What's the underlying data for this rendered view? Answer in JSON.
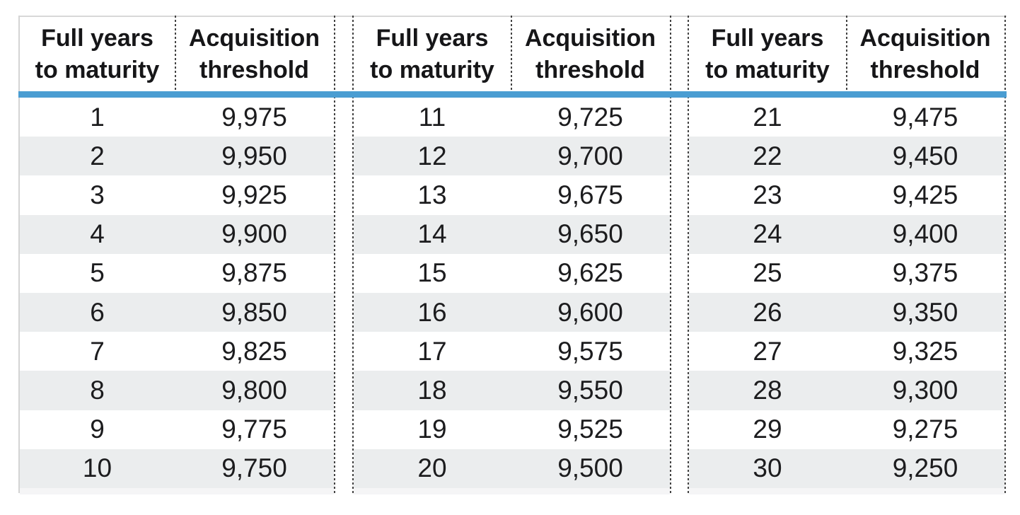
{
  "table": {
    "header": {
      "col1": [
        "Full years",
        "to maturity"
      ],
      "col2": [
        "Acquisition",
        "threshold"
      ]
    },
    "groups": [
      {
        "rows": [
          [
            "1",
            "9,975"
          ],
          [
            "2",
            "9,950"
          ],
          [
            "3",
            "9,925"
          ],
          [
            "4",
            "9,900"
          ],
          [
            "5",
            "9,875"
          ],
          [
            "6",
            "9,850"
          ],
          [
            "7",
            "9,825"
          ],
          [
            "8",
            "9,800"
          ],
          [
            "9",
            "9,775"
          ],
          [
            "10",
            "9,750"
          ]
        ]
      },
      {
        "rows": [
          [
            "11",
            "9,725"
          ],
          [
            "12",
            "9,700"
          ],
          [
            "13",
            "9,675"
          ],
          [
            "14",
            "9,650"
          ],
          [
            "15",
            "9,625"
          ],
          [
            "16",
            "9,600"
          ],
          [
            "17",
            "9,575"
          ],
          [
            "18",
            "9,550"
          ],
          [
            "19",
            "9,525"
          ],
          [
            "20",
            "9,500"
          ]
        ]
      },
      {
        "rows": [
          [
            "21",
            "9,475"
          ],
          [
            "22",
            "9,450"
          ],
          [
            "23",
            "9,425"
          ],
          [
            "24",
            "9,400"
          ],
          [
            "25",
            "9,375"
          ],
          [
            "26",
            "9,350"
          ],
          [
            "27",
            "9,325"
          ],
          [
            "28",
            "9,300"
          ],
          [
            "29",
            "9,275"
          ],
          [
            "30",
            "9,250"
          ]
        ]
      }
    ]
  },
  "colors": {
    "header_rule_blue": "#4a9dd2",
    "alt_row_gray": "#ebedee",
    "dotted_separator": "#434343",
    "outer_border_gray": "#d8d8d8",
    "text": "#1c1c1e"
  },
  "chart_data": {
    "type": "table",
    "columns": [
      "Full years to maturity",
      "Acquisition threshold"
    ],
    "rows": [
      [
        1,
        9975
      ],
      [
        2,
        9950
      ],
      [
        3,
        9925
      ],
      [
        4,
        9900
      ],
      [
        5,
        9875
      ],
      [
        6,
        9850
      ],
      [
        7,
        9825
      ],
      [
        8,
        9800
      ],
      [
        9,
        9775
      ],
      [
        10,
        9750
      ],
      [
        11,
        9725
      ],
      [
        12,
        9700
      ],
      [
        13,
        9675
      ],
      [
        14,
        9650
      ],
      [
        15,
        9625
      ],
      [
        16,
        9600
      ],
      [
        17,
        9575
      ],
      [
        18,
        9550
      ],
      [
        19,
        9525
      ],
      [
        20,
        9500
      ],
      [
        21,
        9475
      ],
      [
        22,
        9450
      ],
      [
        23,
        9425
      ],
      [
        24,
        9400
      ],
      [
        25,
        9375
      ],
      [
        26,
        9350
      ],
      [
        27,
        9325
      ],
      [
        28,
        9300
      ],
      [
        29,
        9275
      ],
      [
        30,
        9250
      ]
    ]
  }
}
